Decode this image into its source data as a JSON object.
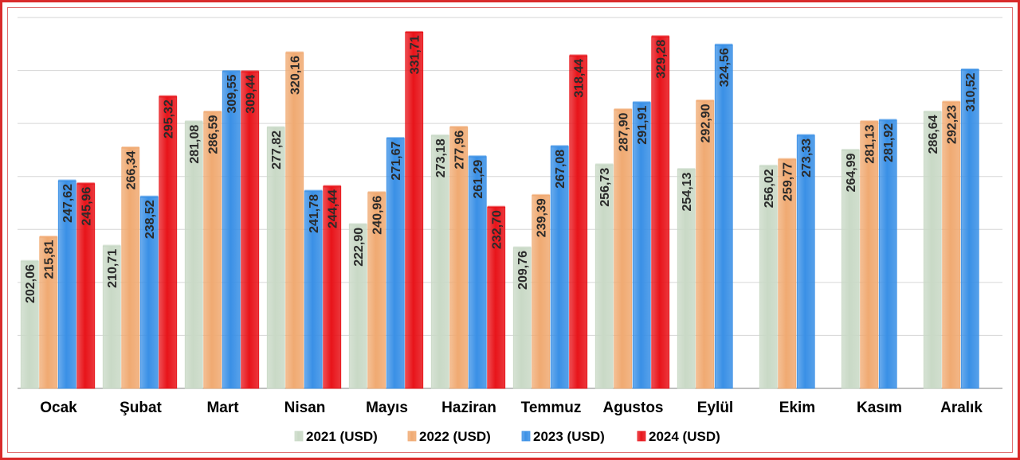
{
  "chart_data": {
    "type": "bar",
    "title": "",
    "xlabel": "",
    "ylabel": "",
    "ylim": [
      130,
      340
    ],
    "grid": true,
    "legend_position": "bottom",
    "categories": [
      "Ocak",
      "Şubat",
      "Mart",
      "Nisan",
      "Mayıs",
      "Haziran",
      "Temmuz",
      "Agustos",
      "Eylül",
      "Ekim",
      "Kasım",
      "Aralık"
    ],
    "series": [
      {
        "name": "2021 (USD)",
        "color": "#c9d9c6",
        "values": [
          202.06,
          210.71,
          281.08,
          277.82,
          222.9,
          273.18,
          209.76,
          256.73,
          254.13,
          256.02,
          264.99,
          286.64
        ],
        "labels": [
          "202,06",
          "210,71",
          "281,08",
          "277,82",
          "222,90",
          "273,18",
          "209,76",
          "256,73",
          "254,13",
          "256,02",
          "264,99",
          "286,64"
        ]
      },
      {
        "name": "2022 (USD)",
        "color": "#f0aa72",
        "values": [
          215.81,
          266.34,
          286.59,
          320.16,
          240.96,
          277.96,
          239.39,
          287.9,
          292.9,
          259.77,
          281.13,
          292.23
        ],
        "labels": [
          "215,81",
          "266,34",
          "286,59",
          "320,16",
          "240,96",
          "277,96",
          "239,39",
          "287,90",
          "292,90",
          "259,77",
          "281,13",
          "292,23"
        ]
      },
      {
        "name": "2023 (USD)",
        "color": "#3a90e6",
        "values": [
          247.62,
          238.52,
          309.55,
          241.78,
          271.67,
          261.29,
          267.08,
          291.91,
          324.56,
          273.33,
          281.92,
          310.52
        ],
        "labels": [
          "247,62",
          "238,52",
          "309,55",
          "241,78",
          "271,67",
          "261,29",
          "267,08",
          "291,91",
          "324,56",
          "273,33",
          "281,92",
          "310,52"
        ]
      },
      {
        "name": "2024 (USD)",
        "color": "#e8141a",
        "values": [
          245.96,
          295.32,
          309.44,
          244.44,
          331.71,
          232.7,
          318.44,
          329.28,
          null,
          null,
          null,
          null
        ],
        "labels": [
          "245,96",
          "295,32",
          "309,44",
          "244,44",
          "331,71",
          "232,70",
          "318,44",
          "329,28",
          null,
          null,
          null,
          null
        ]
      }
    ]
  }
}
